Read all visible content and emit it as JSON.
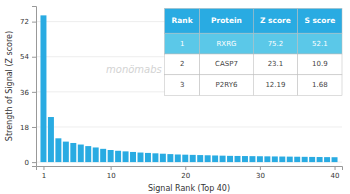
{
  "chart_data": {
    "type": "bar",
    "x": [
      1,
      2,
      3,
      4,
      5,
      6,
      7,
      8,
      9,
      10,
      11,
      12,
      13,
      14,
      15,
      16,
      17,
      18,
      19,
      20,
      21,
      22,
      23,
      24,
      25,
      26,
      27,
      28,
      29,
      30,
      31,
      32,
      33,
      34,
      35,
      36,
      37,
      38,
      39,
      40
    ],
    "values": [
      75.2,
      23.1,
      12.19,
      10.5,
      9.8,
      9.0,
      8.2,
      7.5,
      6.8,
      6.2,
      5.8,
      5.5,
      5.2,
      4.9,
      4.7,
      4.5,
      4.3,
      4.1,
      3.9,
      3.8,
      3.7,
      3.6,
      3.5,
      3.4,
      3.3,
      3.2,
      3.15,
      3.1,
      3.05,
      3.0,
      2.95,
      2.9,
      2.85,
      2.8,
      2.75,
      2.7,
      2.65,
      2.6,
      2.55,
      2.5
    ],
    "color": "#29ABE2",
    "x_label": "Signal Rank (Top 40)",
    "y_label": "Strength of Signal (Z score)",
    "xlim": [
      0,
      41
    ],
    "xticks": [
      1,
      10,
      20,
      30,
      40
    ],
    "ylim": [
      -2,
      80
    ],
    "yticks": [
      0,
      18,
      36,
      54,
      72
    ],
    "grid": true,
    "annotations": [
      {
        "text": "monömabs",
        "color": "#cccccc"
      }
    ],
    "table": {
      "headers": [
        "Rank",
        "Protein",
        "Z score",
        "S score"
      ],
      "rows": [
        [
          "1",
          "RXRG",
          "75.2",
          "52.1"
        ],
        [
          "2",
          "CASP7",
          "23.1",
          "10.9"
        ],
        [
          "3",
          "P2RY6",
          "12.19",
          "1.68"
        ]
      ],
      "header_color": "#29ABE2",
      "header_text_color": "#ffffff",
      "row_colors": [
        "#5BC8E8",
        "#ffffff",
        "#ffffff"
      ],
      "row_text_colors": [
        "#ffffff",
        "#444444",
        "#444444"
      ]
    }
  }
}
